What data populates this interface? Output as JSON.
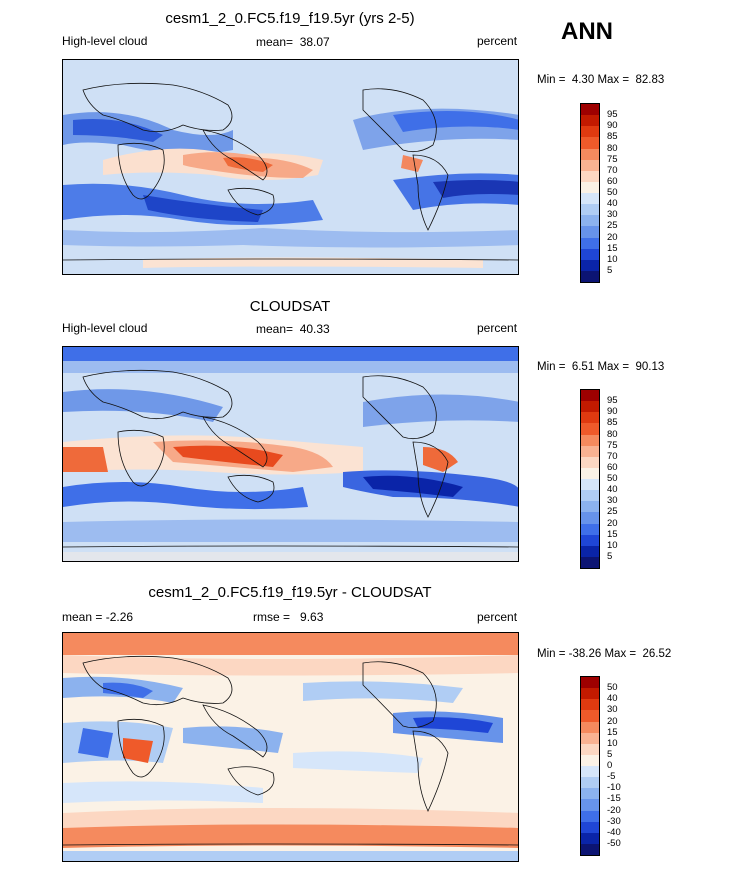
{
  "season": "ANN",
  "panels": [
    {
      "title": "cesm1_2_0.FC5.f19_f19.5yr (yrs 2-5)",
      "left": "High-level cloud",
      "center_label": "mean=",
      "center_value": "38.07",
      "right": "percent",
      "min_label": "Min =",
      "min_value": "4.30",
      "max_label": "Max =",
      "max_value": "82.83",
      "colorbar_labels": [
        "95",
        "90",
        "85",
        "80",
        "75",
        "70",
        "60",
        "50",
        "40",
        "30",
        "25",
        "20",
        "15",
        "10",
        "5"
      ],
      "colorbar_colors": [
        "#9e0000",
        "#c21a00",
        "#e03a10",
        "#ef5a2a",
        "#f58a5e",
        "#f9b292",
        "#fcd7c2",
        "#fbf2e6",
        "#d6e6fa",
        "#b0cdf4",
        "#8cb2ee",
        "#6793ea",
        "#3f6fe8",
        "#1f46d6",
        "#0a24a8",
        "#0c1473"
      ]
    },
    {
      "title": "CLOUDSAT",
      "left": "High-level cloud",
      "center_label": "mean=",
      "center_value": "40.33",
      "right": "percent",
      "min_label": "Min =",
      "min_value": "6.51",
      "max_label": "Max =",
      "max_value": "90.13",
      "colorbar_labels": [
        "95",
        "90",
        "85",
        "80",
        "75",
        "70",
        "60",
        "50",
        "40",
        "30",
        "25",
        "20",
        "15",
        "10",
        "5"
      ],
      "colorbar_colors": [
        "#9e0000",
        "#c21a00",
        "#e03a10",
        "#ef5a2a",
        "#f58a5e",
        "#f9b292",
        "#fcd7c2",
        "#fbf2e6",
        "#d6e6fa",
        "#b0cdf4",
        "#8cb2ee",
        "#6793ea",
        "#3f6fe8",
        "#1f46d6",
        "#0a24a8",
        "#0c1473"
      ]
    },
    {
      "title": "cesm1_2_0.FC5.f19_f19.5yr - CLOUDSAT",
      "left": "mean =  -2.26",
      "center_label": "rmse =",
      "center_value": "9.63",
      "right": "percent",
      "min_label": "Min =",
      "min_value": "-38.26",
      "max_label": "Max =",
      "max_value": "26.52",
      "colorbar_labels": [
        "50",
        "40",
        "30",
        "20",
        "15",
        "10",
        "5",
        "0",
        "-5",
        "-10",
        "-15",
        "-20",
        "-30",
        "-40",
        "-50"
      ],
      "colorbar_colors": [
        "#9e0000",
        "#c21a00",
        "#e03a10",
        "#ef5a2a",
        "#f58a5e",
        "#f9b292",
        "#fcd7c2",
        "#fbf2e6",
        "#d6e6fa",
        "#b0cdf4",
        "#8cb2ee",
        "#6793ea",
        "#3f6fe8",
        "#1f46d6",
        "#0a24a8",
        "#0c1473"
      ]
    }
  ]
}
